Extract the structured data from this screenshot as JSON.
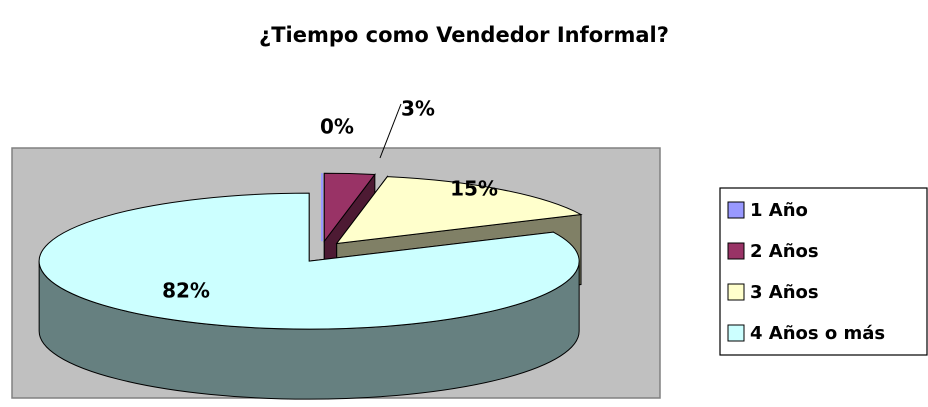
{
  "chart_data": {
    "type": "pie",
    "title": "¿Tiempo como Vendedor Informal?",
    "categories": [
      "1 Año",
      "2 Años",
      "3 Años",
      "4 Años o más"
    ],
    "values": [
      0,
      3,
      15,
      82
    ],
    "value_labels": [
      "0%",
      "3%",
      "15%",
      "82%"
    ],
    "colors": [
      "#9999ff",
      "#993366",
      "#ffffcc",
      "#ccffff"
    ],
    "legend": "right"
  }
}
